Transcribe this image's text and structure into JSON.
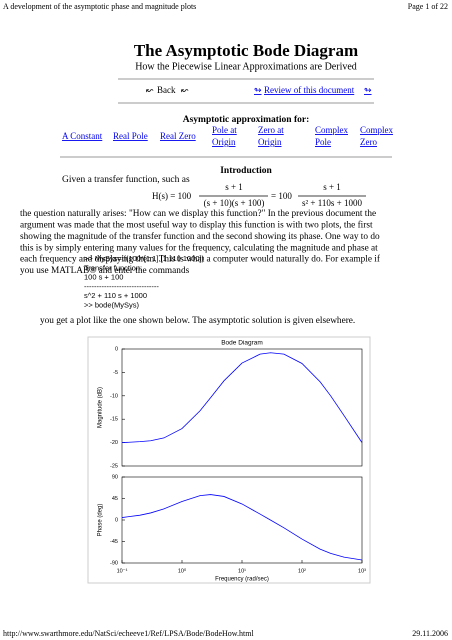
{
  "header": {
    "left": "A development of the asymptotic phase and magnitude plots",
    "right": "Page 1 of 22"
  },
  "title": "The Asymptotic Bode Diagram",
  "subtitle": "How the Piecewise Linear Approximations are Derived",
  "nav": {
    "back": "Back",
    "review": "Review of this document"
  },
  "approx": {
    "heading": "Asymptotic approximation for:",
    "links": [
      [
        "A Constant"
      ],
      [
        "Real Pole"
      ],
      [
        "Real Zero"
      ],
      [
        "Pole at",
        "Origin"
      ],
      [
        "Zero at",
        "Origin"
      ],
      [
        "Complex",
        "Pole"
      ],
      [
        "Complex",
        "Zero"
      ]
    ]
  },
  "intro": {
    "heading": "Introduction",
    "lead": "Given a transfer function, such as",
    "equation": {
      "lhs": "H(s) = 100",
      "num1": "s + 1",
      "den1": "(s + 10)(s + 100)",
      "mid": "= 100",
      "num2": "s + 1",
      "den2": "s² + 110s + 1000"
    }
  },
  "paragraph": [
    "the question naturally arises: \"How can we display this function?\"  In the previous document the",
    "argument was made that the most useful way to display this function is with two plots, the first",
    "showing the magnitude of the transfer function and the second showing its phase.  One way to do",
    "this is by simply entering many values for the frequency, calculating the magnitude and phase at",
    "each frequency and displaying them.  This is what a computer would naturally do.  For example if",
    "you use MATLAB® and enter the commands"
  ],
  "code": [
    ">> MySys=tf(100*[1 1],[1 110 1000])",
    "Transfer function:",
    "   100 s + 100",
    "------------------------------",
    "   s^2 + 110 s + 1000",
    ">> bode(MySys)"
  ],
  "after": "you get a plot like the one shown below.  The asymptotic solution is given elsewhere.",
  "chart_data": [
    {
      "type": "line",
      "title": "Bode Diagram",
      "y_label": "Magnitude (dB)",
      "log_x": true,
      "x": [
        0.1,
        0.2,
        0.3,
        0.5,
        1,
        2,
        3,
        5,
        10,
        20,
        30,
        50,
        100,
        200,
        300,
        500,
        1000
      ],
      "series": [
        {
          "color": "#0000ff",
          "values": [
            -20.0,
            -19.8,
            -19.6,
            -19.0,
            -17.0,
            -13.2,
            -10.4,
            -6.8,
            -3.0,
            -1.1,
            -0.8,
            -1.1,
            -3.1,
            -7.0,
            -10.0,
            -14.2,
            -20.0
          ]
        }
      ],
      "xlim": [
        0.1,
        1000
      ],
      "ylim": [
        -25,
        0
      ],
      "yticks": [
        0,
        -5,
        -10,
        -15,
        -20,
        -25
      ]
    },
    {
      "type": "line",
      "y_label": "Phase (deg)",
      "x_label": "Frequency (rad/sec)",
      "log_x": true,
      "x": [
        0.1,
        0.2,
        0.3,
        0.5,
        1,
        2,
        3,
        5,
        10,
        20,
        30,
        50,
        100,
        200,
        300,
        500,
        1000
      ],
      "series": [
        {
          "color": "#0000ff",
          "values": [
            5.1,
            10.1,
            14.8,
            23.4,
            38.7,
            51.0,
            53.2,
            49.3,
            33.6,
            12.4,
            -0.2,
            -16.4,
            -39.9,
            -60.9,
            -69.9,
            -77.7,
            -83.8
          ]
        }
      ],
      "xlim": [
        0.1,
        1000
      ],
      "ylim": [
        -90,
        90
      ],
      "yticks": [
        90,
        45,
        0,
        -45,
        -90
      ],
      "xticks": [
        {
          "value": 0.1,
          "label": "10⁻¹"
        },
        {
          "value": 1,
          "label": "10⁰"
        },
        {
          "value": 10,
          "label": "10¹"
        },
        {
          "value": 100,
          "label": "10²"
        },
        {
          "value": 1000,
          "label": "10³"
        }
      ]
    }
  ],
  "footer": {
    "url": "http://www.swarthmore.edu/NatSci/echeeve1/Ref/LPSA/Bode/BodeHow.html",
    "date": "29.11.2006"
  }
}
